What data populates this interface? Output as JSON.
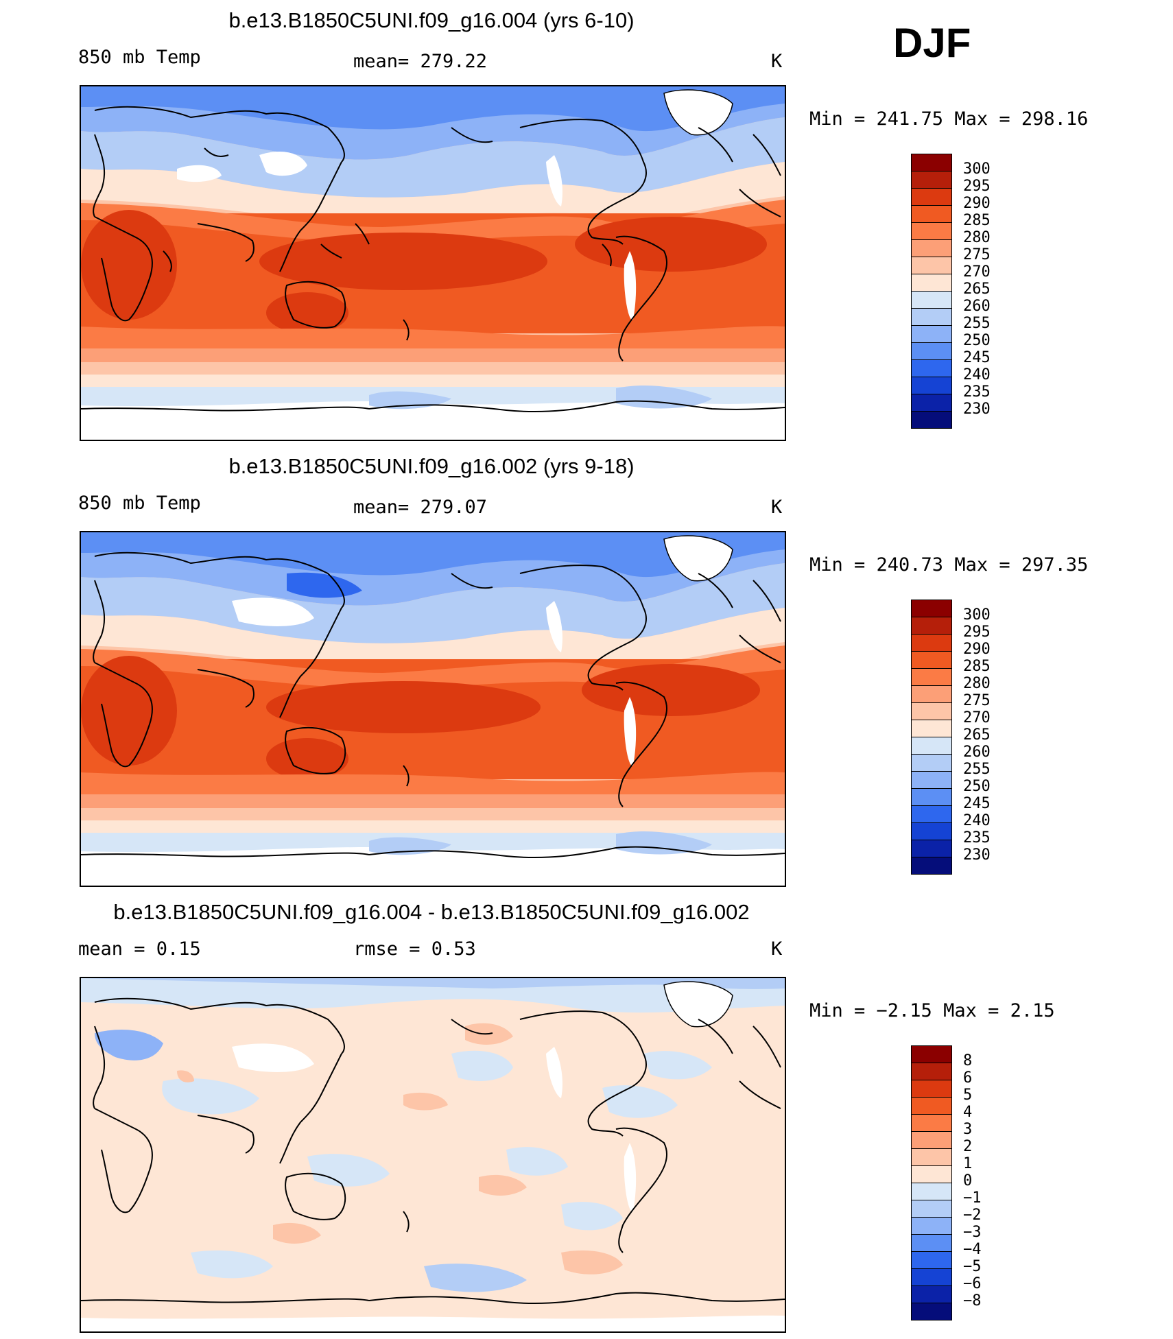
{
  "season": "DJF",
  "panels": [
    {
      "title": "b.e13.B1850C5UNI.f09_g16.004 (yrs 6-10)",
      "variable": "850 mb Temp",
      "stat": "mean=  279.22",
      "units": "K",
      "minmax": "Min  =  241.75  Max  =  298.16",
      "colorbar_labels": [
        "300",
        "295",
        "290",
        "285",
        "280",
        "275",
        "270",
        "265",
        "260",
        "255",
        "250",
        "245",
        "240",
        "235",
        "230"
      ],
      "colorbar_colors": [
        "#8b0000",
        "#b51f0a",
        "#dc3a10",
        "#f05a22",
        "#fb7b45",
        "#fc9f77",
        "#fdc5a8",
        "#fee6d5",
        "#d6e6f7",
        "#b3cdf6",
        "#8db2f7",
        "#5c8ff4",
        "#2e67ee",
        "#1543d4",
        "#0b22a8",
        "#050d7a"
      ]
    },
    {
      "title": "b.e13.B1850C5UNI.f09_g16.002 (yrs 9-18)",
      "variable": "850 mb Temp",
      "stat": "mean=  279.07",
      "units": "K",
      "minmax": "Min  =  240.73  Max  =  297.35",
      "colorbar_labels": [
        "300",
        "295",
        "290",
        "285",
        "280",
        "275",
        "270",
        "265",
        "260",
        "255",
        "250",
        "245",
        "240",
        "235",
        "230"
      ],
      "colorbar_colors": [
        "#8b0000",
        "#b51f0a",
        "#dc3a10",
        "#f05a22",
        "#fb7b45",
        "#fc9f77",
        "#fdc5a8",
        "#fee6d5",
        "#d6e6f7",
        "#b3cdf6",
        "#8db2f7",
        "#5c8ff4",
        "#2e67ee",
        "#1543d4",
        "#0b22a8",
        "#050d7a"
      ]
    },
    {
      "title": "b.e13.B1850C5UNI.f09_g16.004 - b.e13.B1850C5UNI.f09_g16.002",
      "variable": "mean =     0.15",
      "stat": "rmse =     0.53",
      "units": "K",
      "minmax": "Min  =    −2.15  Max  =     2.15",
      "colorbar_labels": [
        "8",
        "6",
        "5",
        "4",
        "3",
        "2",
        "1",
        "0",
        "−1",
        "−2",
        "−3",
        "−4",
        "−5",
        "−6",
        "−8"
      ],
      "colorbar_colors": [
        "#8b0000",
        "#b51f0a",
        "#dc3a10",
        "#f05a22",
        "#fb7b45",
        "#fc9f77",
        "#fdc5a8",
        "#fee6d5",
        "#d6e6f7",
        "#b3cdf6",
        "#8db2f7",
        "#5c8ff4",
        "#2e67ee",
        "#1543d4",
        "#0b22a8",
        "#050d7a"
      ]
    }
  ]
}
